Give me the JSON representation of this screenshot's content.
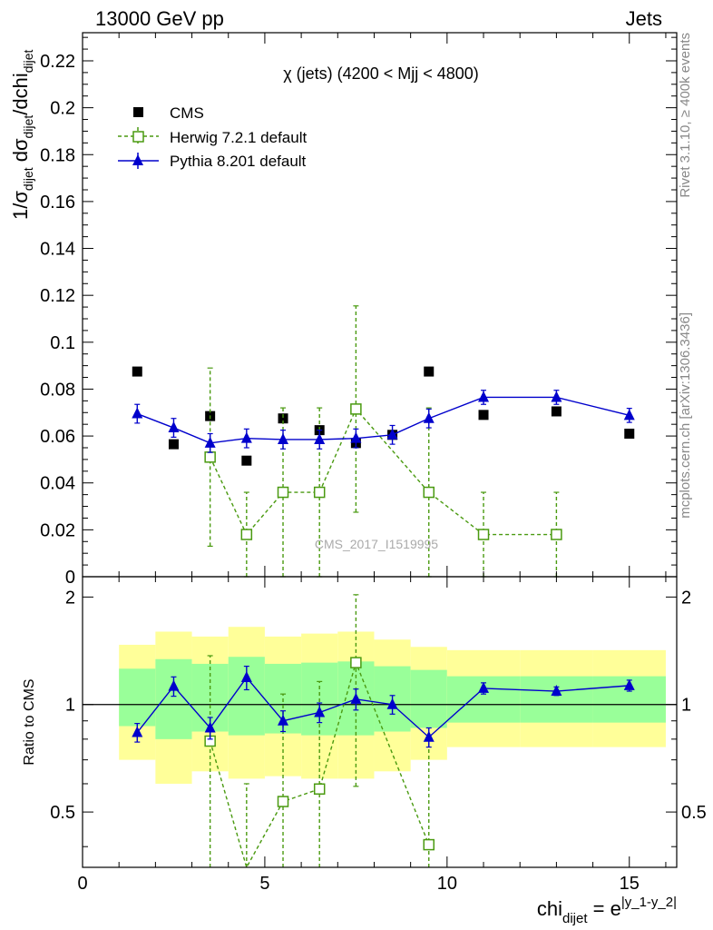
{
  "header": {
    "left": "13000 GeV pp",
    "right": "Jets"
  },
  "side_text": {
    "rivet": "Rivet 3.1.10, ≥ 400k events",
    "mcplots": "mcplots.cern.ch [arXiv:1306.3436]"
  },
  "watermark": "CMS_2017_I1519995",
  "chart_data": [
    {
      "type": "scatter",
      "panel": "main",
      "title": "χ (jets) (4200 < Mjj < 4800)",
      "ylabel": "1/σ_dijet dσ_dijet/dchi_dijet",
      "xlim": [
        0,
        16.3
      ],
      "ylim": [
        0,
        0.232
      ],
      "yticks": [
        0,
        0.02,
        0.04,
        0.06,
        0.08,
        0.1,
        0.12,
        0.14,
        0.16,
        0.18,
        0.2,
        0.22
      ],
      "ytick_labels": [
        "0",
        "0.02",
        "0.04",
        "0.06",
        "0.08",
        "0.1",
        "0.12",
        "0.14",
        "0.16",
        "0.18",
        "0.2",
        "0.22"
      ],
      "legend_position": "top-left",
      "series": [
        {
          "name": "CMS",
          "style": "marker",
          "color": "#000000",
          "x": [
            1.5,
            2.5,
            3.5,
            4.5,
            5.5,
            6.5,
            7.5,
            8.5,
            9.5,
            11,
            13,
            15
          ],
          "y": [
            0.0875,
            0.0565,
            0.0685,
            0.0495,
            0.0675,
            0.0625,
            0.057,
            0.0605,
            0.0875,
            0.069,
            0.0705,
            0.061
          ]
        },
        {
          "name": "Herwig 7.2.1 default",
          "style": "dashed-open-square",
          "color": "#4a9a10",
          "x": [
            3.5,
            4.5,
            5.5,
            6.5,
            7.5,
            9.5,
            11,
            13
          ],
          "y": [
            0.051,
            0.018,
            0.036,
            0.036,
            0.0715,
            0.036,
            0.018,
            0.018
          ],
          "err": [
            0.038,
            0.018,
            0.036,
            0.036,
            0.044,
            0.036,
            0.018,
            0.018
          ]
        },
        {
          "name": "Pythia 8.201 default",
          "style": "solid-triangle",
          "color": "#0000cc",
          "x": [
            1.5,
            2.5,
            3.5,
            4.5,
            5.5,
            6.5,
            7.5,
            8.5,
            9.5,
            11,
            13,
            15
          ],
          "y": [
            0.0695,
            0.0635,
            0.057,
            0.059,
            0.0585,
            0.0585,
            0.059,
            0.0605,
            0.0675,
            0.0765,
            0.0765,
            0.0688
          ],
          "err": [
            0.004,
            0.004,
            0.004,
            0.004,
            0.004,
            0.004,
            0.004,
            0.004,
            0.004,
            0.003,
            0.003,
            0.003
          ]
        }
      ]
    },
    {
      "type": "scatter",
      "panel": "ratio",
      "ylabel": "Ratio to CMS",
      "xlabel": "chi_dijet = e^|y_1-y_2|",
      "xlim": [
        0,
        16.3
      ],
      "ylim": [
        0.35,
        2.28
      ],
      "xticks": [
        0,
        5,
        10,
        15
      ],
      "xtick_labels": [
        "0",
        "5",
        "10",
        "15"
      ],
      "yticks": [
        0.5,
        1,
        2
      ],
      "ytick_labels": [
        "0.5",
        "1",
        "2"
      ],
      "bands": {
        "edges": [
          1,
          2,
          3,
          4,
          5,
          6,
          7,
          8,
          9,
          10,
          12,
          14,
          16
        ],
        "outer_color": "#ffff99",
        "inner_color": "#99ff99",
        "outer_lo": [
          0.7,
          0.6,
          0.65,
          0.62,
          0.63,
          0.62,
          0.62,
          0.65,
          0.7,
          0.76,
          0.76,
          0.76
        ],
        "outer_hi": [
          1.47,
          1.6,
          1.55,
          1.65,
          1.55,
          1.58,
          1.6,
          1.52,
          1.45,
          1.42,
          1.42,
          1.42
        ],
        "inner_lo": [
          0.87,
          0.8,
          0.84,
          0.82,
          0.83,
          0.82,
          0.82,
          0.84,
          0.86,
          0.89,
          0.89,
          0.89
        ],
        "inner_hi": [
          1.26,
          1.34,
          1.3,
          1.36,
          1.3,
          1.31,
          1.32,
          1.28,
          1.25,
          1.2,
          1.2,
          1.2
        ]
      },
      "series": [
        {
          "name": "Herwig 7.2.1 default",
          "style": "dashed-open-square",
          "color": "#4a9a10",
          "x": [
            3.5,
            4.5,
            5.5,
            6.5,
            7.5,
            9.5
          ],
          "y": [
            0.79,
            0.3,
            0.535,
            0.58,
            1.31,
            0.405
          ],
          "err": [
            0.58,
            0.3,
            0.535,
            0.58,
            0.72,
            0.405
          ]
        },
        {
          "name": "Pythia 8.201 default",
          "style": "solid-triangle",
          "color": "#0000cc",
          "x": [
            1.5,
            2.5,
            3.5,
            4.5,
            5.5,
            6.5,
            7.5,
            8.5,
            9.5,
            11,
            13,
            15
          ],
          "y": [
            0.835,
            1.125,
            0.86,
            1.19,
            0.9,
            0.95,
            1.035,
            1.0,
            0.81,
            1.11,
            1.09,
            1.13
          ],
          "err": [
            0.05,
            0.07,
            0.06,
            0.09,
            0.06,
            0.06,
            0.07,
            0.06,
            0.05,
            0.04,
            0.03,
            0.04
          ]
        }
      ]
    }
  ]
}
